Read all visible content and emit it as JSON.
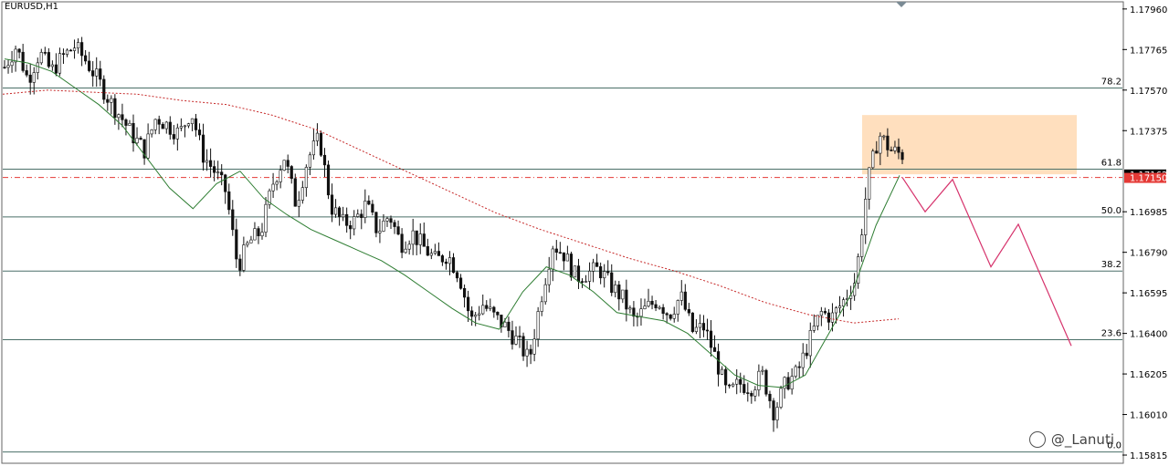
{
  "symbol": "EURUSD,H1",
  "watermark": "@_Lanuti",
  "colors": {
    "bull_candle": "#1a1a1a",
    "bear_candle": "#1a1a1a",
    "ma_fast": "#2e7d32",
    "ma_slow": "#c62828",
    "fib_line": "#4a6f68",
    "zone_fill": "#ffd9b3",
    "projection": "#d6336c",
    "current_price_bg": "#e53935",
    "bid_price_bg": "#000000"
  },
  "chart_data": {
    "type": "candlestick",
    "price_axis": {
      "ticks": [
        "1.17960",
        "1.17765",
        "1.17570",
        "1.17375",
        "1.16985",
        "1.16790",
        "1.16595",
        "1.16400",
        "1.16205",
        "1.16010",
        "1.15815"
      ],
      "ymin": 1.1578,
      "ymax": 1.1799
    },
    "current_price": "1.17150",
    "bid_price": "1.17162",
    "fib_levels": [
      {
        "label": "78.2",
        "price": 1.1758
      },
      {
        "label": "61.8",
        "price": 1.1719
      },
      {
        "label": "50.0",
        "price": 1.1696
      },
      {
        "label": "38.2",
        "price": 1.167
      },
      {
        "label": "23.6",
        "price": 1.1637
      },
      {
        "label": "0.0",
        "price": 1.1583
      }
    ],
    "supply_zone": {
      "price_top": 1.1745,
      "price_bottom": 1.17165
    },
    "price_path": [
      1.1768,
      1.1778,
      1.1762,
      1.1775,
      1.1766,
      1.1773,
      1.1778,
      1.1771,
      1.1762,
      1.1752,
      1.1744,
      1.1735,
      1.1728,
      1.1744,
      1.174,
      1.1736,
      1.1747,
      1.1726,
      1.1718,
      1.1708,
      1.1672,
      1.1684,
      1.1689,
      1.1712,
      1.1725,
      1.1702,
      1.1724,
      1.1734,
      1.1701,
      1.1693,
      1.1694,
      1.1702,
      1.1689,
      1.1697,
      1.1683,
      1.1688,
      1.1681,
      1.1675,
      1.1678,
      1.1668,
      1.1646,
      1.1654,
      1.1648,
      1.1643,
      1.1636,
      1.1627,
      1.1657,
      1.1683,
      1.1678,
      1.1667,
      1.1669,
      1.1671,
      1.1663,
      1.1657,
      1.1646,
      1.1652,
      1.1656,
      1.1649,
      1.1658,
      1.1641,
      1.1643,
      1.1628,
      1.161,
      1.1616,
      1.1614,
      1.162,
      1.1602,
      1.1616,
      1.1621,
      1.1636,
      1.165,
      1.1648,
      1.1656,
      1.1666,
      1.1712,
      1.1736,
      1.1728,
      1.1726
    ],
    "ma_fast_path": [
      1.1772,
      1.177,
      1.1766,
      1.1758,
      1.175,
      1.174,
      1.1725,
      1.171,
      1.17,
      1.1712,
      1.1718,
      1.1705,
      1.1697,
      1.169,
      1.1685,
      1.168,
      1.1675,
      1.1668,
      1.166,
      1.1652,
      1.1645,
      1.1642,
      1.166,
      1.1672,
      1.1668,
      1.166,
      1.165,
      1.1648,
      1.1646,
      1.164,
      1.163,
      1.162,
      1.1615,
      1.1614,
      1.162,
      1.164,
      1.166,
      1.1692,
      1.1716
    ],
    "ma_slow_path": [
      1.1755,
      1.1757,
      1.1756,
      1.1755,
      1.1752,
      1.175,
      1.1745,
      1.1738,
      1.1728,
      1.1718,
      1.1708,
      1.1698,
      1.169,
      1.1683,
      1.1676,
      1.167,
      1.1663,
      1.1655,
      1.1649,
      1.1645,
      1.1647
    ],
    "projection_path": [
      1.1715,
      1.16985,
      1.1714,
      1.1672,
      1.16925,
      1.1634
    ]
  }
}
